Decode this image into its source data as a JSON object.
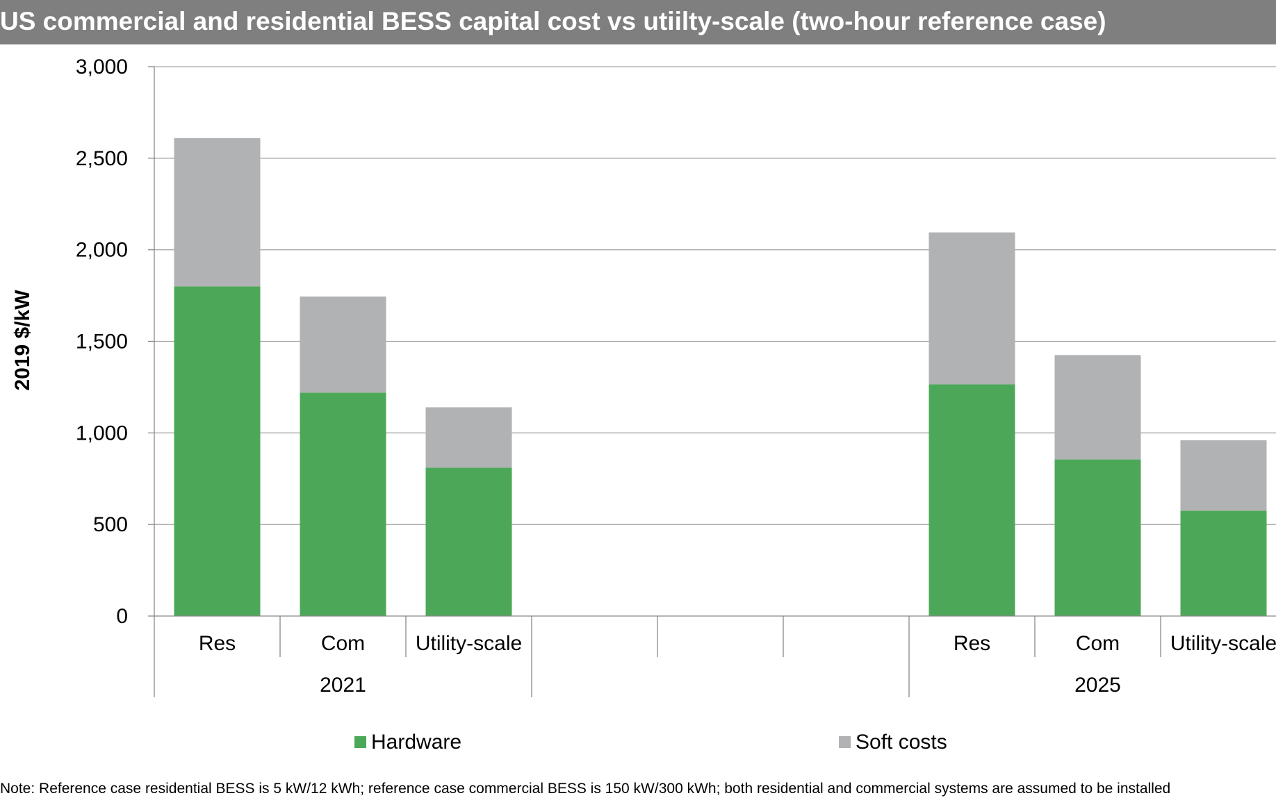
{
  "chart_data": {
    "type": "bar",
    "stacked": true,
    "title": "US commercial and residential BESS capital cost vs utiilty-scale (two-hour reference case)",
    "ylabel": "2019 $/kW",
    "ylim": [
      0,
      3000
    ],
    "yticks": [
      0,
      500,
      1000,
      1500,
      2000,
      2500,
      3000
    ],
    "ytick_labels": [
      "0",
      "500",
      "1,000",
      "1,500",
      "2,000",
      "2,500",
      "3,000"
    ],
    "grid": true,
    "legend_position": "bottom",
    "groups": [
      {
        "label": "2021",
        "categories": [
          "Res",
          "Com",
          "Utility-scale"
        ]
      },
      {
        "label": "",
        "categories": [
          "",
          "",
          ""
        ]
      },
      {
        "label": "2025",
        "categories": [
          "Res",
          "Com",
          "Utility-scale"
        ]
      }
    ],
    "categories": [
      "Res",
      "Com",
      "Utility-scale",
      "",
      "",
      "",
      "Res",
      "Com",
      "Utility-scale"
    ],
    "series": [
      {
        "name": "Hardware",
        "color": "#4ca858",
        "values": [
          1800,
          1220,
          810,
          null,
          null,
          null,
          1265,
          855,
          575
        ]
      },
      {
        "name": "Soft costs",
        "color": "#b1b2b4",
        "values": [
          810,
          525,
          330,
          null,
          null,
          null,
          830,
          570,
          385
        ]
      }
    ]
  },
  "note": "Note: Reference case residential BESS is 5 kW/12 kWh; reference case commercial BESS is 150 kW/300 kWh; both residential and commercial systems are assumed to be installed"
}
